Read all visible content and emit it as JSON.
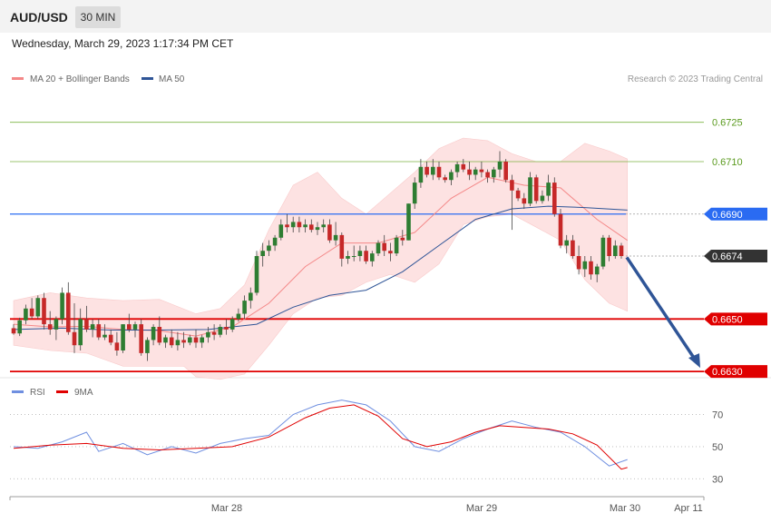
{
  "header": {
    "pair": "AUD/USD",
    "timeframe": "30 MIN"
  },
  "datetime": "Wednesday, March 29, 2023 1:17:34 PM CET",
  "copyright": "Research © 2023 Trading Central",
  "colors": {
    "up": "#2e7d32",
    "down": "#c62828",
    "ma20": "#f48888",
    "ma50": "#2f5597",
    "bands": "#fde2e2",
    "resistance": "#7cb342",
    "pivot": "#2a6bf2",
    "support": "#e00000",
    "arrow": "#2f5597",
    "rsi": "#6f8fe0",
    "rsi_ma": "#e00000"
  },
  "chart_data": [
    {
      "type": "candlestick",
      "title": "AUD/USD",
      "timeframe": "30 MIN",
      "x_ticks": [
        "Mar 28",
        "Mar 29",
        "Mar 30",
        "Apr 11"
      ],
      "legend": [
        {
          "label": "MA 20 + Bollinger Bands",
          "color": "#f48888"
        },
        {
          "label": "MA 50",
          "color": "#2f5597"
        }
      ],
      "ylim": [
        0.6629,
        0.6737
      ],
      "price_levels": [
        {
          "label": "0.6725",
          "value": 0.6725,
          "role": "resistance",
          "color": "#7cb342"
        },
        {
          "label": "0.6710",
          "value": 0.671,
          "role": "resistance",
          "color": "#7cb342"
        },
        {
          "label": "0.6690",
          "value": 0.669,
          "role": "pivot",
          "color": "#2a6bf2"
        },
        {
          "label": "0.6674",
          "value": 0.6674,
          "role": "last",
          "color": "#333333"
        },
        {
          "label": "0.6650",
          "value": 0.665,
          "role": "support",
          "color": "#e00000"
        },
        {
          "label": "0.6630",
          "value": 0.663,
          "role": "support",
          "color": "#e00000"
        }
      ],
      "candles": [
        [
          0.66465,
          0.6648,
          0.6644,
          0.66445
        ],
        [
          0.66445,
          0.66505,
          0.66435,
          0.66495
        ],
        [
          0.66495,
          0.66555,
          0.6648,
          0.6654
        ],
        [
          0.6654,
          0.6658,
          0.665,
          0.6651
        ],
        [
          0.6651,
          0.6659,
          0.665,
          0.6658
        ],
        [
          0.6658,
          0.666,
          0.6646,
          0.6648
        ],
        [
          0.6648,
          0.6653,
          0.6644,
          0.6646
        ],
        [
          0.6646,
          0.6651,
          0.6642,
          0.665
        ],
        [
          0.665,
          0.6662,
          0.6648,
          0.666
        ],
        [
          0.666,
          0.6664,
          0.6644,
          0.6645
        ],
        [
          0.6645,
          0.6656,
          0.6637,
          0.664
        ],
        [
          0.664,
          0.6654,
          0.6638,
          0.665
        ],
        [
          0.665,
          0.6655,
          0.6645,
          0.6646
        ],
        [
          0.6646,
          0.665,
          0.6643,
          0.6648
        ],
        [
          0.6648,
          0.665,
          0.6642,
          0.6643
        ],
        [
          0.6643,
          0.6648,
          0.6642,
          0.6644
        ],
        [
          0.6644,
          0.6646,
          0.664,
          0.6641
        ],
        [
          0.6641,
          0.6645,
          0.6636,
          0.6638
        ],
        [
          0.6638,
          0.6648,
          0.6637,
          0.6648
        ],
        [
          0.6648,
          0.6652,
          0.6645,
          0.6646
        ],
        [
          0.6646,
          0.6649,
          0.6643,
          0.6648
        ],
        [
          0.6648,
          0.665,
          0.6636,
          0.6637
        ],
        [
          0.6637,
          0.6643,
          0.6634,
          0.6642
        ],
        [
          0.6642,
          0.6648,
          0.664,
          0.6647
        ],
        [
          0.6647,
          0.6651,
          0.664,
          0.6641
        ],
        [
          0.6641,
          0.6644,
          0.6639,
          0.6643
        ],
        [
          0.6643,
          0.6646,
          0.6639,
          0.664
        ],
        [
          0.664,
          0.6645,
          0.6638,
          0.6642
        ],
        [
          0.6642,
          0.6645,
          0.6639,
          0.6641
        ],
        [
          0.6641,
          0.6644,
          0.664,
          0.6643
        ],
        [
          0.6643,
          0.6646,
          0.6639,
          0.6641
        ],
        [
          0.6641,
          0.6644,
          0.6639,
          0.6643
        ],
        [
          0.6643,
          0.6647,
          0.6641,
          0.6645
        ],
        [
          0.6645,
          0.6648,
          0.6642,
          0.6644
        ],
        [
          0.6644,
          0.6648,
          0.6643,
          0.6647
        ],
        [
          0.6647,
          0.665,
          0.6644,
          0.6646
        ],
        [
          0.6646,
          0.6651,
          0.6645,
          0.665
        ],
        [
          0.665,
          0.6654,
          0.6649,
          0.6652
        ],
        [
          0.6652,
          0.6659,
          0.665,
          0.6657
        ],
        [
          0.6657,
          0.6662,
          0.6654,
          0.666
        ],
        [
          0.666,
          0.6676,
          0.6659,
          0.6674
        ],
        [
          0.6674,
          0.6679,
          0.667,
          0.6676
        ],
        [
          0.6676,
          0.668,
          0.6674,
          0.6678
        ],
        [
          0.6678,
          0.6682,
          0.6676,
          0.6681
        ],
        [
          0.6681,
          0.6688,
          0.668,
          0.6686
        ],
        [
          0.6686,
          0.669,
          0.6683,
          0.6685
        ],
        [
          0.6685,
          0.6689,
          0.6683,
          0.6687
        ],
        [
          0.6687,
          0.6689,
          0.6683,
          0.6685
        ],
        [
          0.6685,
          0.6688,
          0.6683,
          0.6686
        ],
        [
          0.6686,
          0.6688,
          0.6683,
          0.6684
        ],
        [
          0.6684,
          0.6687,
          0.6682,
          0.6685
        ],
        [
          0.6685,
          0.6688,
          0.6683,
          0.6686
        ],
        [
          0.6686,
          0.6688,
          0.6679,
          0.668
        ],
        [
          0.668,
          0.6687,
          0.6678,
          0.6682
        ],
        [
          0.6682,
          0.6683,
          0.667,
          0.6673
        ],
        [
          0.6673,
          0.6676,
          0.6671,
          0.6674
        ],
        [
          0.6674,
          0.6678,
          0.6672,
          0.6674
        ],
        [
          0.6674,
          0.6678,
          0.6672,
          0.6676
        ],
        [
          0.6676,
          0.6678,
          0.6671,
          0.6672
        ],
        [
          0.6672,
          0.6676,
          0.667,
          0.6675
        ],
        [
          0.6675,
          0.668,
          0.6674,
          0.6679
        ],
        [
          0.6679,
          0.6682,
          0.6674,
          0.6676
        ],
        [
          0.6676,
          0.6679,
          0.6672,
          0.6675
        ],
        [
          0.6675,
          0.6682,
          0.6674,
          0.6681
        ],
        [
          0.6681,
          0.6684,
          0.6678,
          0.668
        ],
        [
          0.668,
          0.6694,
          0.668,
          0.6694
        ],
        [
          0.6694,
          0.6704,
          0.6692,
          0.6702
        ],
        [
          0.6702,
          0.6711,
          0.67,
          0.6708
        ],
        [
          0.6708,
          0.671,
          0.6704,
          0.6705
        ],
        [
          0.6705,
          0.6711,
          0.6703,
          0.6708
        ],
        [
          0.6708,
          0.671,
          0.6703,
          0.6704
        ],
        [
          0.6704,
          0.6705,
          0.6702,
          0.6703
        ],
        [
          0.6703,
          0.6707,
          0.6701,
          0.6706
        ],
        [
          0.6706,
          0.671,
          0.6704,
          0.6709
        ],
        [
          0.6709,
          0.6711,
          0.6706,
          0.6707
        ],
        [
          0.6707,
          0.671,
          0.6703,
          0.6705
        ],
        [
          0.6705,
          0.6708,
          0.6703,
          0.6707
        ],
        [
          0.6707,
          0.671,
          0.6704,
          0.6706
        ],
        [
          0.6706,
          0.6707,
          0.6702,
          0.6704
        ],
        [
          0.6704,
          0.6708,
          0.6702,
          0.6707
        ],
        [
          0.6707,
          0.6714,
          0.6704,
          0.671
        ],
        [
          0.671,
          0.6711,
          0.6702,
          0.6703
        ],
        [
          0.6703,
          0.6705,
          0.6684,
          0.6699
        ],
        [
          0.6699,
          0.67,
          0.6695,
          0.6696
        ],
        [
          0.6696,
          0.6698,
          0.6692,
          0.6694
        ],
        [
          0.6694,
          0.6706,
          0.6693,
          0.6704
        ],
        [
          0.6704,
          0.6705,
          0.6694,
          0.6695
        ],
        [
          0.6695,
          0.6699,
          0.6694,
          0.6697
        ],
        [
          0.6697,
          0.6705,
          0.6695,
          0.6702
        ],
        [
          0.6702,
          0.6704,
          0.6689,
          0.669
        ],
        [
          0.669,
          0.6692,
          0.6677,
          0.6678
        ],
        [
          0.6678,
          0.6682,
          0.6675,
          0.668
        ],
        [
          0.668,
          0.6682,
          0.6673,
          0.6674
        ],
        [
          0.6674,
          0.6678,
          0.6667,
          0.6669
        ],
        [
          0.6669,
          0.6674,
          0.6666,
          0.6672
        ],
        [
          0.6672,
          0.6674,
          0.6665,
          0.6667
        ],
        [
          0.6667,
          0.6671,
          0.6664,
          0.667
        ],
        [
          0.667,
          0.6682,
          0.6669,
          0.6681
        ],
        [
          0.6681,
          0.6682,
          0.6672,
          0.6674
        ],
        [
          0.6674,
          0.668,
          0.6673,
          0.6678
        ],
        [
          0.6678,
          0.6679,
          0.6673,
          0.6674
        ]
      ],
      "ma20": [
        [
          0,
          0.6648
        ],
        [
          6,
          0.6647
        ],
        [
          12,
          0.66472
        ],
        [
          18,
          0.6646
        ],
        [
          24,
          0.66455
        ],
        [
          30,
          0.66435
        ],
        [
          36,
          0.6647
        ],
        [
          42,
          0.6656
        ],
        [
          48,
          0.667
        ],
        [
          54,
          0.6679
        ],
        [
          60,
          0.6679
        ],
        [
          66,
          0.6683
        ],
        [
          72,
          0.6696
        ],
        [
          78,
          0.6704
        ],
        [
          84,
          0.6701
        ],
        [
          90,
          0.67
        ],
        [
          96,
          0.6688
        ],
        [
          101,
          0.668
        ]
      ],
      "ma50": [
        [
          0,
          0.6646
        ],
        [
          8,
          0.66465
        ],
        [
          16,
          0.66458
        ],
        [
          24,
          0.66458
        ],
        [
          32,
          0.6646
        ],
        [
          40,
          0.6648
        ],
        [
          46,
          0.66545
        ],
        [
          52,
          0.6659
        ],
        [
          58,
          0.6661
        ],
        [
          64,
          0.6668
        ],
        [
          70,
          0.6678
        ],
        [
          76,
          0.6688
        ],
        [
          82,
          0.6692
        ],
        [
          88,
          0.6693
        ],
        [
          94,
          0.66925
        ],
        [
          101,
          0.66915
        ]
      ],
      "bb_upper": [
        [
          0,
          0.6657
        ],
        [
          6,
          0.666
        ],
        [
          12,
          0.6658
        ],
        [
          18,
          0.6657
        ],
        [
          24,
          0.66575
        ],
        [
          30,
          0.6652
        ],
        [
          34,
          0.6654
        ],
        [
          38,
          0.6663
        ],
        [
          42,
          0.6684
        ],
        [
          46,
          0.6701
        ],
        [
          50,
          0.6706
        ],
        [
          54,
          0.6696
        ],
        [
          58,
          0.669
        ],
        [
          62,
          0.6698
        ],
        [
          66,
          0.6706
        ],
        [
          70,
          0.6715
        ],
        [
          74,
          0.6719
        ],
        [
          78,
          0.6718
        ],
        [
          82,
          0.6713
        ],
        [
          86,
          0.671
        ],
        [
          90,
          0.671
        ],
        [
          94,
          0.6717
        ],
        [
          98,
          0.6714
        ],
        [
          101,
          0.6711
        ]
      ],
      "bb_lower": [
        [
          0,
          0.664
        ],
        [
          6,
          0.6638
        ],
        [
          12,
          0.6637
        ],
        [
          18,
          0.6632
        ],
        [
          24,
          0.6632
        ],
        [
          28,
          0.6632
        ],
        [
          30,
          0.6628
        ],
        [
          34,
          0.6627
        ],
        [
          38,
          0.6629
        ],
        [
          42,
          0.664
        ],
        [
          46,
          0.6652
        ],
        [
          50,
          0.6658
        ],
        [
          54,
          0.6659
        ],
        [
          58,
          0.6664
        ],
        [
          62,
          0.6667
        ],
        [
          66,
          0.6664
        ],
        [
          70,
          0.6671
        ],
        [
          74,
          0.6686
        ],
        [
          78,
          0.6689
        ],
        [
          82,
          0.669
        ],
        [
          86,
          0.6685
        ],
        [
          90,
          0.668
        ],
        [
          94,
          0.6665
        ],
        [
          98,
          0.6656
        ],
        [
          101,
          0.6653
        ]
      ],
      "projection": {
        "from": 0.66735,
        "to": 0.663
      }
    },
    {
      "type": "line",
      "title": "RSI",
      "legend": [
        {
          "label": "RSI",
          "color": "#6f8fe0"
        },
        {
          "label": "9MA",
          "color": "#e00000"
        }
      ],
      "ylim": [
        20,
        85
      ],
      "y_ticks": [
        "70",
        "50",
        "30"
      ],
      "series": [
        {
          "name": "RSI",
          "values": [
            [
              0,
              50
            ],
            [
              4,
              49
            ],
            [
              8,
              53
            ],
            [
              12,
              59
            ],
            [
              14,
              47
            ],
            [
              18,
              52
            ],
            [
              22,
              45
            ],
            [
              26,
              50
            ],
            [
              30,
              46
            ],
            [
              34,
              52
            ],
            [
              38,
              55
            ],
            [
              42,
              57
            ],
            [
              46,
              70
            ],
            [
              50,
              76
            ],
            [
              54,
              79
            ],
            [
              58,
              76
            ],
            [
              62,
              66
            ],
            [
              66,
              50
            ],
            [
              70,
              47
            ],
            [
              74,
              55
            ],
            [
              78,
              61
            ],
            [
              82,
              66
            ],
            [
              86,
              62
            ],
            [
              90,
              59
            ],
            [
              94,
              50
            ],
            [
              98,
              38
            ],
            [
              101,
              42
            ]
          ]
        },
        {
          "name": "9MA",
          "values": [
            [
              0,
              49
            ],
            [
              6,
              51
            ],
            [
              12,
              52
            ],
            [
              18,
              49
            ],
            [
              24,
              48
            ],
            [
              30,
              49
            ],
            [
              36,
              50
            ],
            [
              42,
              56
            ],
            [
              48,
              68
            ],
            [
              52,
              74
            ],
            [
              56,
              76
            ],
            [
              60,
              69
            ],
            [
              64,
              55
            ],
            [
              68,
              50
            ],
            [
              72,
              53
            ],
            [
              76,
              59
            ],
            [
              80,
              63
            ],
            [
              84,
              62
            ],
            [
              88,
              61
            ],
            [
              92,
              58
            ],
            [
              96,
              51
            ],
            [
              100,
              36
            ],
            [
              101,
              37
            ]
          ]
        }
      ]
    }
  ]
}
